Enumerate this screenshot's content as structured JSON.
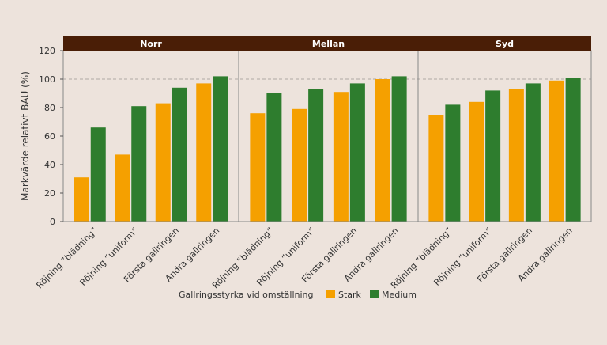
{
  "chart_data": {
    "type": "bar",
    "ylabel": "Markvärde relativt BAU (%)",
    "ylim": [
      0,
      120
    ],
    "yticks": [
      0,
      20,
      40,
      60,
      80,
      100,
      120
    ],
    "reference_line": 100,
    "categories": [
      "Röjning ”blädning”",
      "Röjning ”uniform”",
      "Första gallringen",
      "Andra gallringen"
    ],
    "legend": {
      "title": "Gallringsstyrka vid omställning",
      "placement": "bottom"
    },
    "colors": {
      "Stark": "#f5a000",
      "Medium": "#2e7d2e",
      "panel_header": "#4a1e06",
      "reference_line": "#b0a8a4"
    },
    "panels": [
      {
        "title": "Norr",
        "series": [
          {
            "name": "Stark",
            "values": [
              31,
              47,
              83,
              97
            ]
          },
          {
            "name": "Medium",
            "values": [
              66,
              81,
              94,
              102
            ]
          }
        ]
      },
      {
        "title": "Mellan",
        "series": [
          {
            "name": "Stark",
            "values": [
              76,
              79,
              91,
              100
            ]
          },
          {
            "name": "Medium",
            "values": [
              90,
              93,
              97,
              102
            ]
          }
        ]
      },
      {
        "title": "Syd",
        "series": [
          {
            "name": "Stark",
            "values": [
              75,
              84,
              93,
              99
            ]
          },
          {
            "name": "Medium",
            "values": [
              82,
              92,
              97,
              101
            ]
          }
        ]
      }
    ]
  }
}
